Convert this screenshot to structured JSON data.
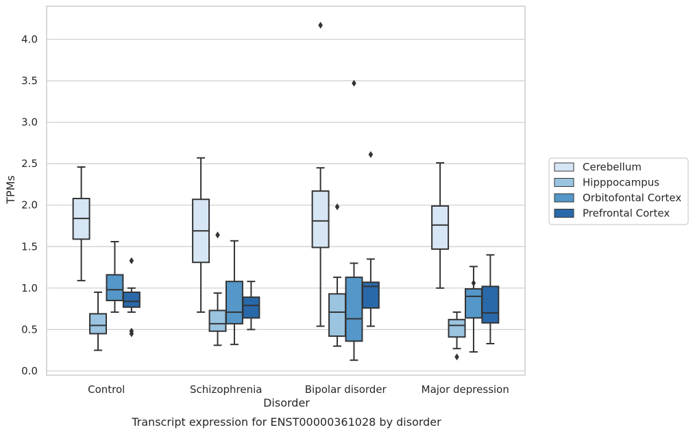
{
  "caption": "Transcript expression for ENST00000361028 by disorder",
  "chart_data": {
    "type": "boxplot",
    "xlabel": "Disorder",
    "ylabel": "TPMs",
    "ylim": [
      -0.05,
      4.4
    ],
    "yticks": [
      "0.0",
      "0.5",
      "1.0",
      "1.5",
      "2.0",
      "2.5",
      "3.0",
      "3.5",
      "4.0"
    ],
    "categories": [
      "Control",
      "Schizophrenia",
      "Bipolar disorder",
      "Major depression"
    ],
    "grid": true,
    "legend_position": "right",
    "series": [
      {
        "name": "Cerebellum",
        "color": "#d7e6f5",
        "boxes": [
          {
            "whislo": 1.09,
            "q1": 1.59,
            "med": 1.84,
            "q3": 2.08,
            "whishi": 2.46,
            "fliers": []
          },
          {
            "whislo": 0.71,
            "q1": 1.31,
            "med": 1.69,
            "q3": 2.07,
            "whishi": 2.57,
            "fliers": []
          },
          {
            "whislo": 0.54,
            "q1": 1.49,
            "med": 1.81,
            "q3": 2.17,
            "whishi": 2.45,
            "fliers": [
              4.17
            ]
          },
          {
            "whislo": 1.0,
            "q1": 1.47,
            "med": 1.76,
            "q3": 1.99,
            "whishi": 2.51,
            "fliers": []
          }
        ]
      },
      {
        "name": "Hipppocampus",
        "color": "#9ac4e0",
        "boxes": [
          {
            "whislo": 0.25,
            "q1": 0.45,
            "med": 0.55,
            "q3": 0.69,
            "whishi": 0.95,
            "fliers": []
          },
          {
            "whislo": 0.31,
            "q1": 0.48,
            "med": 0.57,
            "q3": 0.73,
            "whishi": 0.94,
            "fliers": [
              1.64
            ]
          },
          {
            "whislo": 0.3,
            "q1": 0.42,
            "med": 0.71,
            "q3": 0.93,
            "whishi": 1.13,
            "fliers": [
              1.98
            ]
          },
          {
            "whislo": 0.27,
            "q1": 0.41,
            "med": 0.55,
            "q3": 0.62,
            "whishi": 0.71,
            "fliers": [
              0.17
            ]
          }
        ]
      },
      {
        "name": "Orbitofontal Cortex",
        "color": "#5497c8",
        "boxes": [
          {
            "whislo": 0.71,
            "q1": 0.85,
            "med": 0.98,
            "q3": 1.16,
            "whishi": 1.56,
            "fliers": []
          },
          {
            "whislo": 0.32,
            "q1": 0.57,
            "med": 0.71,
            "q3": 1.08,
            "whishi": 1.57,
            "fliers": []
          },
          {
            "whislo": 0.13,
            "q1": 0.36,
            "med": 0.63,
            "q3": 1.13,
            "whishi": 1.3,
            "fliers": [
              3.47
            ]
          },
          {
            "whislo": 0.23,
            "q1": 0.64,
            "med": 0.9,
            "q3": 0.99,
            "whishi": 1.26,
            "fliers": [
              1.06
            ]
          }
        ]
      },
      {
        "name": "Prefrontal Cortex",
        "color": "#2a69a9",
        "boxes": [
          {
            "whislo": 0.71,
            "q1": 0.77,
            "med": 0.84,
            "q3": 0.95,
            "whishi": 1.0,
            "fliers": [
              1.33,
              0.48,
              0.45
            ]
          },
          {
            "whislo": 0.5,
            "q1": 0.64,
            "med": 0.79,
            "q3": 0.89,
            "whishi": 1.08,
            "fliers": []
          },
          {
            "whislo": 0.54,
            "q1": 0.76,
            "med": 1.02,
            "q3": 1.07,
            "whishi": 1.35,
            "fliers": [
              2.61
            ]
          },
          {
            "whislo": 0.33,
            "q1": 0.58,
            "med": 0.7,
            "q3": 1.02,
            "whishi": 1.4,
            "fliers": []
          }
        ]
      }
    ]
  }
}
